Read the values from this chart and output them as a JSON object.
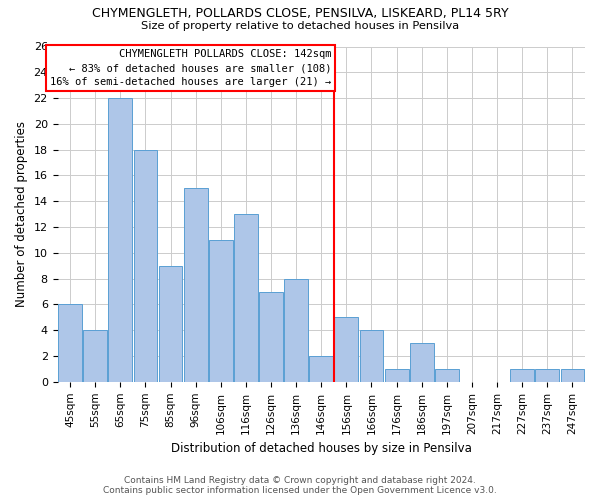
{
  "title": "CHYMENGLETH, POLLARDS CLOSE, PENSILVA, LISKEARD, PL14 5RY",
  "subtitle": "Size of property relative to detached houses in Pensilva",
  "xlabel": "Distribution of detached houses by size in Pensilva",
  "ylabel": "Number of detached properties",
  "categories": [
    "45sqm",
    "55sqm",
    "65sqm",
    "75sqm",
    "85sqm",
    "96sqm",
    "106sqm",
    "116sqm",
    "126sqm",
    "136sqm",
    "146sqm",
    "156sqm",
    "166sqm",
    "176sqm",
    "186sqm",
    "197sqm",
    "207sqm",
    "217sqm",
    "227sqm",
    "237sqm",
    "247sqm"
  ],
  "values": [
    6,
    4,
    22,
    18,
    9,
    15,
    11,
    13,
    7,
    8,
    2,
    5,
    4,
    1,
    3,
    1,
    0,
    0,
    1,
    1,
    1
  ],
  "bar_color": "#aec6e8",
  "bar_edgecolor": "#5a9fd4",
  "redline_index": 10,
  "annotation_lines": [
    "CHYMENGLETH POLLARDS CLOSE: 142sqm",
    "← 83% of detached houses are smaller (108)",
    "16% of semi-detached houses are larger (21) →"
  ],
  "ylim": [
    0,
    26
  ],
  "yticks": [
    0,
    2,
    4,
    6,
    8,
    10,
    12,
    14,
    16,
    18,
    20,
    22,
    24,
    26
  ],
  "background_color": "#ffffff",
  "grid_color": "#cccccc",
  "footer_line1": "Contains HM Land Registry data © Crown copyright and database right 2024.",
  "footer_line2": "Contains public sector information licensed under the Open Government Licence v3.0."
}
